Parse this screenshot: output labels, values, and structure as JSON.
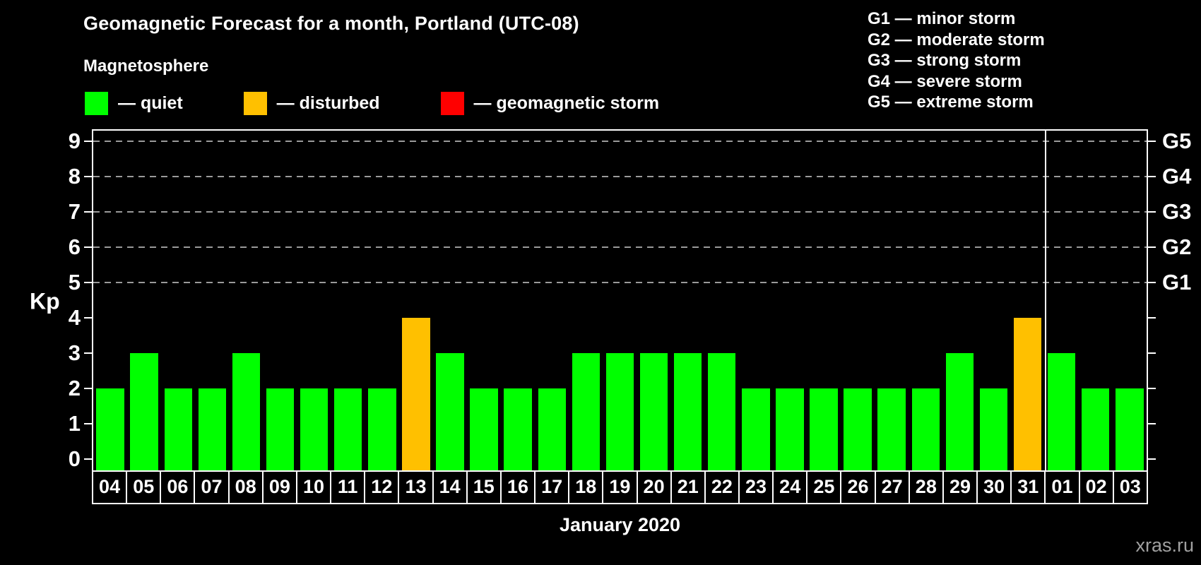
{
  "title": "Geomagnetic Forecast for a month, Portland (UTC-08)",
  "legend": {
    "heading": "Magnetosphere",
    "items": [
      {
        "key": "quiet",
        "label": "— quiet",
        "color": "#00ff00"
      },
      {
        "key": "disturbed",
        "label": "— disturbed",
        "color": "#ffc000"
      },
      {
        "key": "storm",
        "label": "— geomagnetic storm",
        "color": "#ff0000"
      }
    ]
  },
  "storm_scale": [
    "G1 — minor storm",
    "G2 — moderate storm",
    "G3 — strong storm",
    "G4 — severe storm",
    "G5 — extreme storm"
  ],
  "watermark": "xras.ru",
  "colors": {
    "background": "#000000",
    "axis": "#ffffff",
    "grid": "#9a9a9a",
    "quiet": "#00ff00",
    "disturbed": "#ffc000",
    "storm": "#ff0000",
    "watermark": "#a0a0a0"
  },
  "chart_data": {
    "type": "bar",
    "title": "Geomagnetic Forecast for a month, Portland (UTC-08)",
    "xlabel": "January 2020",
    "ylabel": "Kp",
    "ylim": [
      0,
      9.7
    ],
    "yticks": [
      0,
      1,
      2,
      3,
      4,
      5,
      6,
      7,
      8,
      9
    ],
    "gridlines_at": [
      5,
      6,
      7,
      8,
      9
    ],
    "grid_style": "dashed",
    "legend_position": "top-left",
    "right_axis": [
      {
        "label": "G1",
        "value": 5
      },
      {
        "label": "G2",
        "value": 6
      },
      {
        "label": "G3",
        "value": 7
      },
      {
        "label": "G4",
        "value": 8
      },
      {
        "label": "G5",
        "value": 9
      }
    ],
    "categories": [
      "04",
      "05",
      "06",
      "07",
      "08",
      "09",
      "10",
      "11",
      "12",
      "13",
      "14",
      "15",
      "16",
      "17",
      "18",
      "19",
      "20",
      "21",
      "22",
      "23",
      "24",
      "25",
      "26",
      "27",
      "28",
      "29",
      "30",
      "31",
      "01",
      "02",
      "03"
    ],
    "values": [
      2,
      3,
      2,
      2,
      3,
      2,
      2,
      2,
      2,
      4,
      3,
      2,
      2,
      2,
      3,
      3,
      3,
      3,
      3,
      2,
      2,
      2,
      2,
      2,
      2,
      3,
      2,
      4,
      3,
      2,
      2
    ],
    "statuses": [
      "quiet",
      "quiet",
      "quiet",
      "quiet",
      "quiet",
      "quiet",
      "quiet",
      "quiet",
      "quiet",
      "disturbed",
      "quiet",
      "quiet",
      "quiet",
      "quiet",
      "quiet",
      "quiet",
      "quiet",
      "quiet",
      "quiet",
      "quiet",
      "quiet",
      "quiet",
      "quiet",
      "quiet",
      "quiet",
      "quiet",
      "quiet",
      "disturbed",
      "quiet",
      "quiet",
      "quiet"
    ],
    "month_boundary_after_index": 27
  }
}
